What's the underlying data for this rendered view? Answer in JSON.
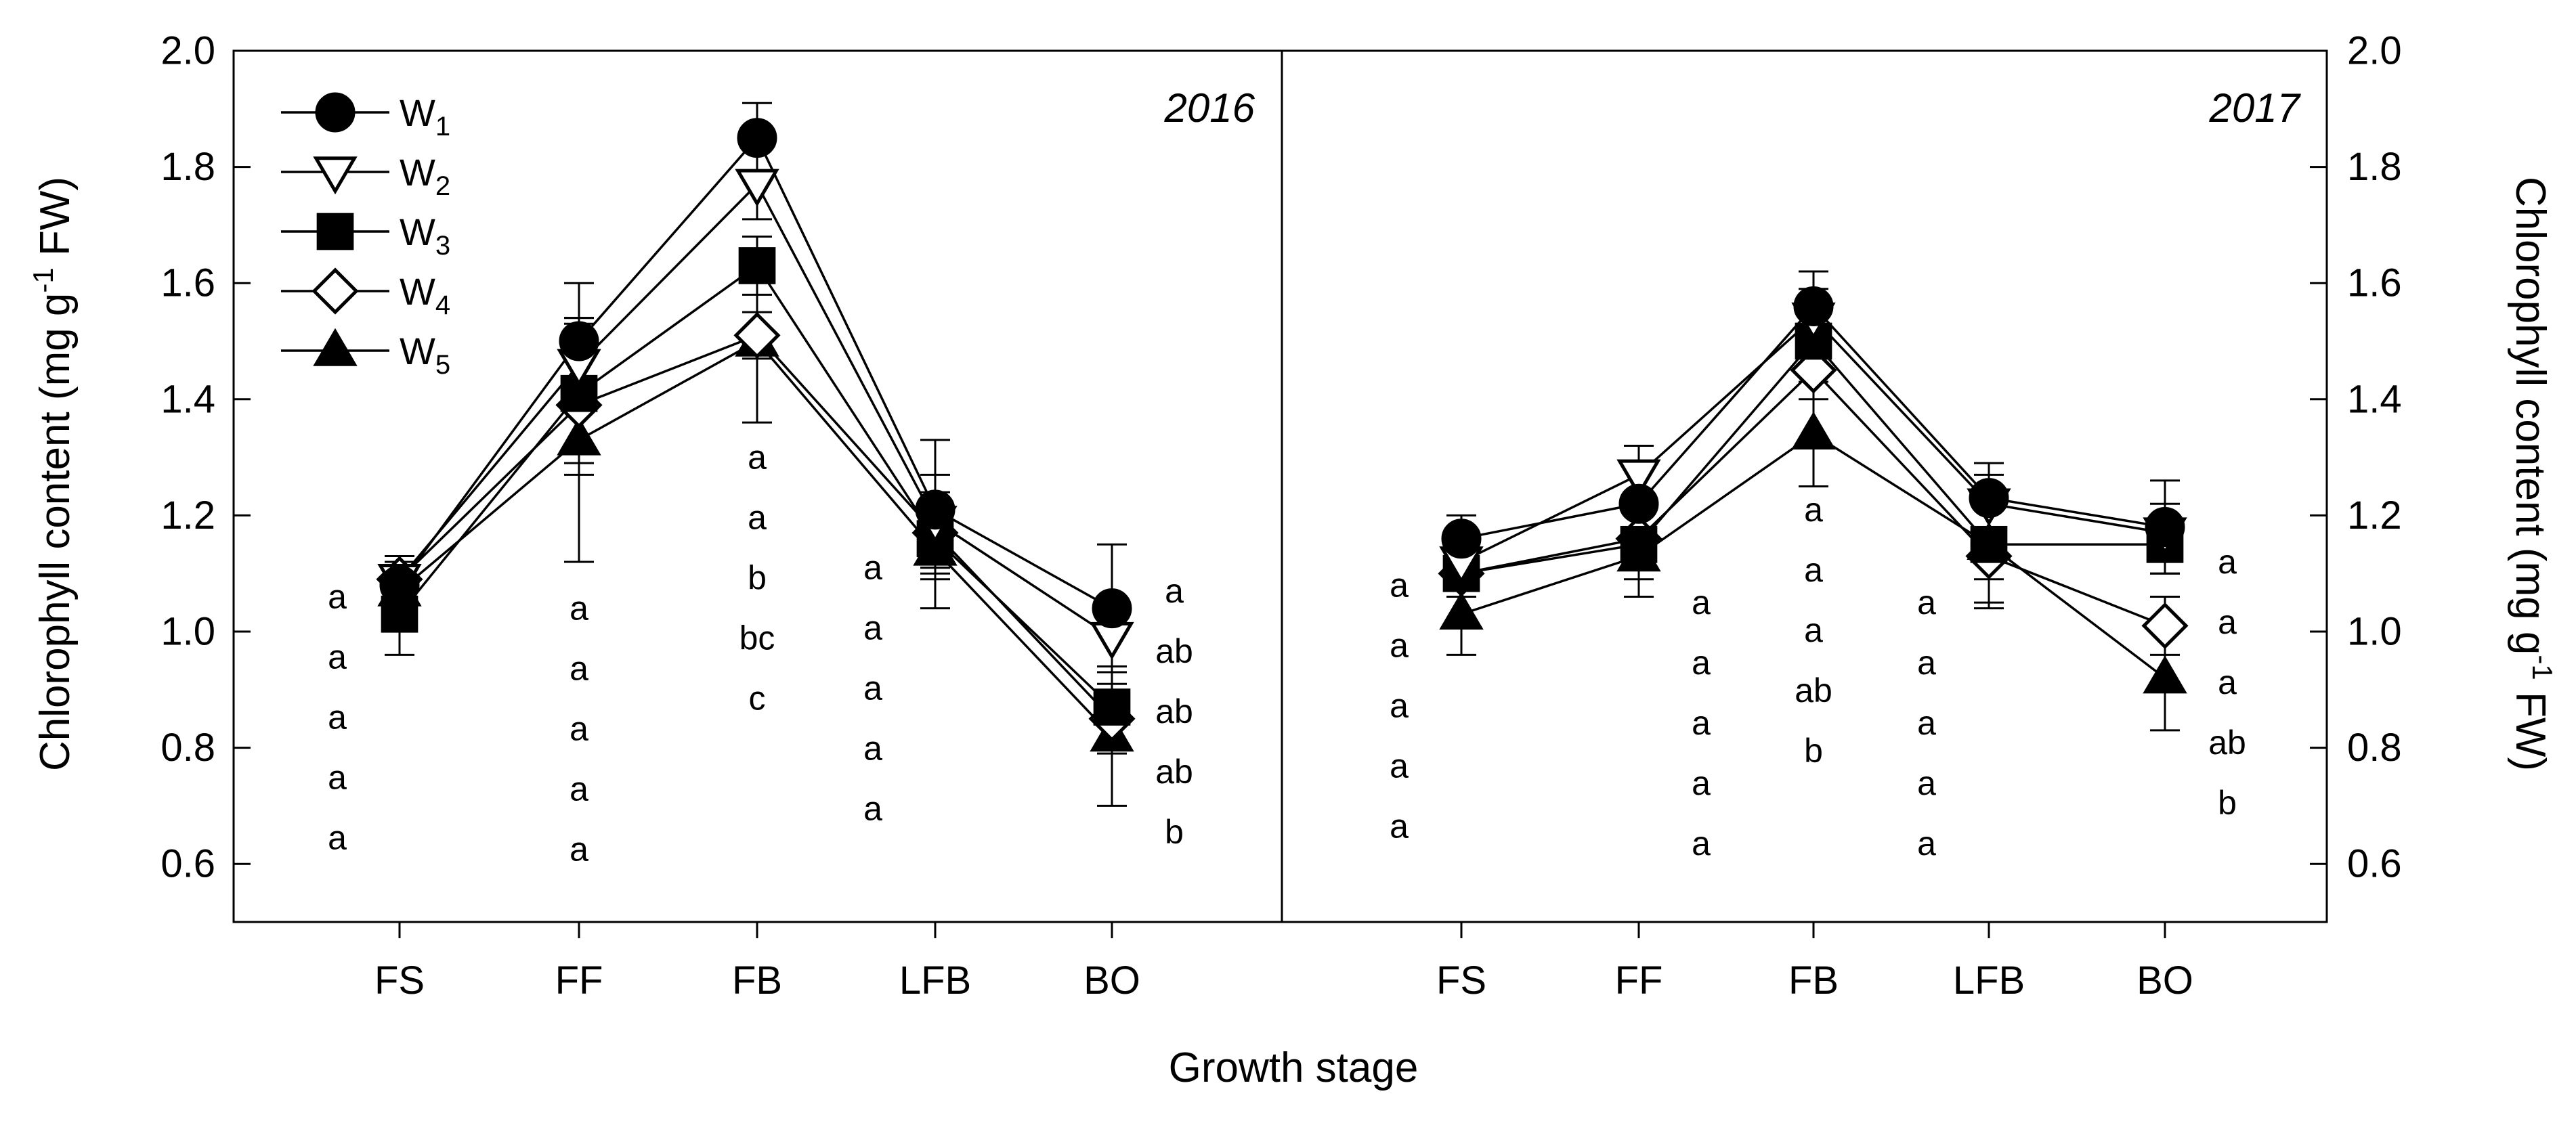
{
  "chart_data": {
    "type": "line",
    "x_axis_title": "Growth stage",
    "y_axis_title_parts": [
      "Chlorophyll content (mg g",
      "-1",
      " FW)"
    ],
    "categories": [
      "FS",
      "FF",
      "FB",
      "LFB",
      "BO"
    ],
    "ylim": [
      0.5,
      2.0
    ],
    "yticks": [
      0.6,
      0.8,
      1.0,
      1.2,
      1.4,
      1.6,
      1.8,
      2.0
    ],
    "ytick_labels": [
      "0.6",
      "0.8",
      "1.0",
      "1.2",
      "1.4",
      "1.6",
      "1.8",
      "2.0"
    ],
    "legend": [
      {
        "key": "W1",
        "base": "W",
        "sub": "1",
        "marker": "circle-filled"
      },
      {
        "key": "W2",
        "base": "W",
        "sub": "2",
        "marker": "triangle-down-open"
      },
      {
        "key": "W3",
        "base": "W",
        "sub": "3",
        "marker": "square-filled"
      },
      {
        "key": "W4",
        "base": "W",
        "sub": "4",
        "marker": "diamond-open"
      },
      {
        "key": "W5",
        "base": "W",
        "sub": "5",
        "marker": "triangle-up-filled"
      }
    ],
    "panels": [
      {
        "year": "2016",
        "series": [
          {
            "key": "W1",
            "values": [
              1.08,
              1.5,
              1.85,
              1.21,
              1.04
            ],
            "errors": [
              0.05,
              0.1,
              0.06,
              0.12,
              0.11
            ]
          },
          {
            "key": "W2",
            "values": [
              1.09,
              1.46,
              1.77,
              1.19,
              0.99
            ],
            "errors": [
              0.04,
              0.08,
              0.06,
              0.08,
              0.06
            ]
          },
          {
            "key": "W3",
            "values": [
              1.03,
              1.41,
              1.63,
              1.16,
              0.87
            ],
            "errors": [
              0.07,
              0.12,
              0.05,
              0.06,
              0.07
            ]
          },
          {
            "key": "W4",
            "values": [
              1.09,
              1.39,
              1.51,
              1.17,
              0.85
            ],
            "errors": [
              0.03,
              0.12,
              0.04,
              0.06,
              0.06
            ]
          },
          {
            "key": "W5",
            "values": [
              1.07,
              1.33,
              1.5,
              1.14,
              0.82
            ],
            "errors": [
              0.05,
              0.21,
              0.14,
              0.1,
              0.12
            ]
          }
        ],
        "significance": [
          {
            "category": "FS",
            "side": "left",
            "letters": [
              "a",
              "a",
              "a",
              "a",
              "a"
            ],
            "top": 1.06
          },
          {
            "category": "FF",
            "side": "center",
            "letters": [
              "a",
              "a",
              "a",
              "a",
              "a"
            ],
            "top": 1.04
          },
          {
            "category": "FB",
            "side": "center",
            "letters": [
              "a",
              "a",
              "b",
              "bc",
              "c"
            ],
            "top": 1.3
          },
          {
            "category": "LFB",
            "side": "left",
            "letters": [
              "a",
              "a",
              "a",
              "a",
              "a"
            ],
            "top": 1.11
          },
          {
            "category": "BO",
            "side": "right",
            "letters": [
              "a",
              "ab",
              "ab",
              "ab",
              "b"
            ],
            "top": 1.07
          }
        ]
      },
      {
        "year": "2017",
        "series": [
          {
            "key": "W1",
            "values": [
              1.16,
              1.22,
              1.56,
              1.23,
              1.18
            ],
            "errors": [
              0.04,
              0.06,
              0.06,
              0.06,
              0.08
            ]
          },
          {
            "key": "W2",
            "values": [
              1.12,
              1.27,
              1.54,
              1.22,
              1.17
            ],
            "errors": [
              0.04,
              0.05,
              0.05,
              0.05,
              0.05
            ]
          },
          {
            "key": "W3",
            "values": [
              1.1,
              1.15,
              1.5,
              1.15,
              1.15
            ],
            "errors": [
              0.04,
              0.06,
              0.06,
              0.06,
              0.05
            ]
          },
          {
            "key": "W4",
            "values": [
              1.1,
              1.16,
              1.45,
              1.13,
              1.01
            ],
            "errors": [
              0.04,
              0.05,
              0.05,
              0.09,
              0.05
            ]
          },
          {
            "key": "W5",
            "values": [
              1.03,
              1.13,
              1.34,
              1.15,
              0.92
            ],
            "errors": [
              0.07,
              0.07,
              0.09,
              0.1,
              0.09
            ]
          }
        ],
        "significance": [
          {
            "category": "FS",
            "side": "left",
            "letters": [
              "a",
              "a",
              "a",
              "a",
              "a"
            ],
            "top": 1.08
          },
          {
            "category": "FF",
            "side": "right",
            "letters": [
              "a",
              "a",
              "a",
              "a",
              "a"
            ],
            "top": 1.05
          },
          {
            "category": "FB",
            "side": "center",
            "letters": [
              "a",
              "a",
              "a",
              "ab",
              "b"
            ],
            "top": 1.21
          },
          {
            "category": "LFB",
            "side": "left",
            "letters": [
              "a",
              "a",
              "a",
              "a",
              "a"
            ],
            "top": 1.05
          },
          {
            "category": "BO",
            "side": "right",
            "letters": [
              "a",
              "a",
              "a",
              "ab",
              "b"
            ],
            "top": 1.12
          }
        ]
      }
    ]
  }
}
